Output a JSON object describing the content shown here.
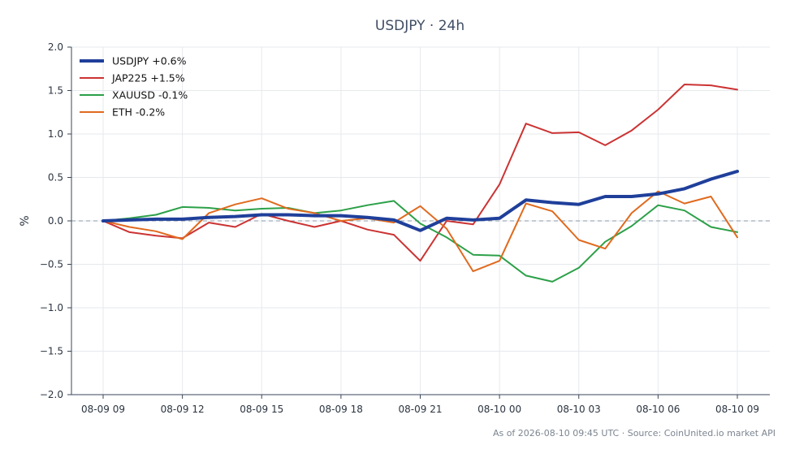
{
  "chart_data": {
    "type": "line",
    "title": "USDJPY · 24h",
    "xlabel": "",
    "ylabel": "%",
    "x": [
      "08-09 09",
      "08-09 10",
      "08-09 11",
      "08-09 12",
      "08-09 13",
      "08-09 14",
      "08-09 15",
      "08-09 16",
      "08-09 17",
      "08-09 18",
      "08-09 19",
      "08-09 20",
      "08-09 21",
      "08-09 22",
      "08-09 23",
      "08-10 00",
      "08-10 01",
      "08-10 02",
      "08-10 03",
      "08-10 04",
      "08-10 05",
      "08-10 06",
      "08-10 07",
      "08-10 08",
      "08-10 09"
    ],
    "xticks": [
      "08-09 09",
      "08-09 12",
      "08-09 15",
      "08-09 18",
      "08-09 21",
      "08-10 00",
      "08-10 03",
      "08-10 06",
      "08-10 09"
    ],
    "ylim": [
      -2.0,
      2.0
    ],
    "yticks": [
      "−2.0",
      "−1.5",
      "−1.0",
      "−0.5",
      "0.0",
      "0.5",
      "1.0",
      "1.5",
      "2.0"
    ],
    "grid": true,
    "baseline": 0.0,
    "legend_position": "top-left",
    "series": [
      {
        "name": "USDJPY +0.6%",
        "color": "#1f3f9a",
        "width": 4,
        "values": [
          0.0,
          0.01,
          0.02,
          0.02,
          0.04,
          0.05,
          0.07,
          0.07,
          0.06,
          0.06,
          0.04,
          0.01,
          -0.11,
          0.03,
          0.01,
          0.03,
          0.24,
          0.21,
          0.19,
          0.28,
          0.28,
          0.31,
          0.37,
          0.48,
          0.57
        ]
      },
      {
        "name": "JAP225 +1.5%",
        "color": "#cc3333",
        "width": 2,
        "values": [
          0.0,
          -0.13,
          -0.17,
          -0.2,
          -0.02,
          -0.07,
          0.08,
          0.0,
          -0.07,
          0.0,
          -0.1,
          -0.16,
          -0.46,
          0.0,
          -0.04,
          0.42,
          1.12,
          1.01,
          1.02,
          0.87,
          1.04,
          1.28,
          1.57,
          1.56,
          1.51
        ]
      },
      {
        "name": "XAUUSD -0.1%",
        "color": "#2ca048",
        "width": 2,
        "values": [
          0.0,
          0.03,
          0.07,
          0.16,
          0.15,
          0.12,
          0.14,
          0.15,
          0.09,
          0.12,
          0.18,
          0.23,
          -0.03,
          -0.19,
          -0.39,
          -0.4,
          -0.63,
          -0.7,
          -0.54,
          -0.24,
          -0.06,
          0.18,
          0.12,
          -0.07,
          -0.13
        ]
      },
      {
        "name": "ETH -0.2%",
        "color": "#e06a1e",
        "width": 2,
        "values": [
          0.0,
          -0.07,
          -0.12,
          -0.21,
          0.09,
          0.19,
          0.26,
          0.14,
          0.09,
          0.0,
          0.03,
          -0.02,
          0.17,
          -0.09,
          -0.58,
          -0.46,
          0.2,
          0.11,
          -0.22,
          -0.32,
          0.09,
          0.34,
          0.2,
          0.28,
          -0.19
        ]
      }
    ]
  },
  "footer": "As of 2026-08-10 09:45 UTC · Source: CoinUnited.io market API"
}
